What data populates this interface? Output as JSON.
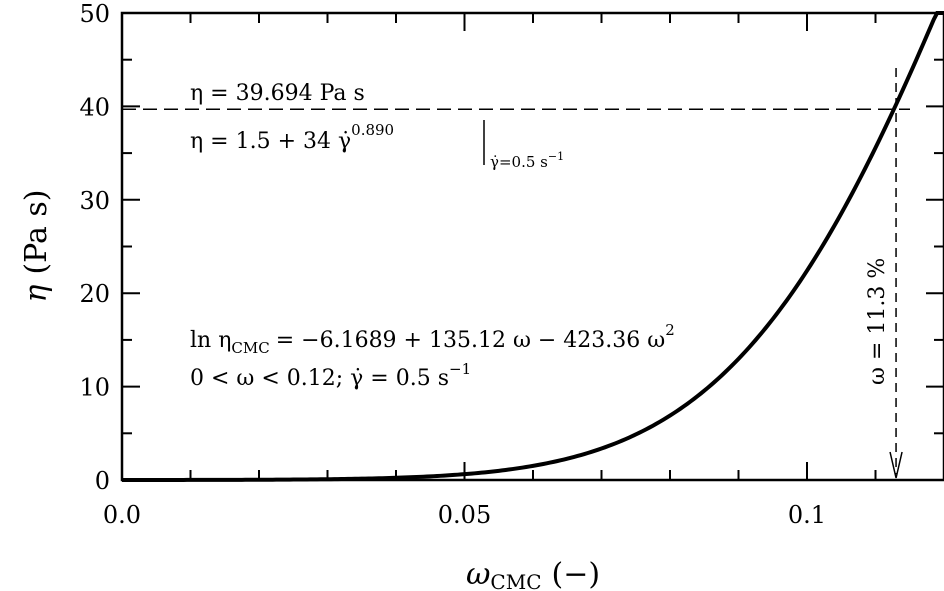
{
  "chart_data": {
    "type": "line",
    "xlabel": "ω",
    "xlabel_sub": "CMC",
    "xlabel_unit": "(−)",
    "ylabel": "η",
    "ylabel_unit": "(Pa s)",
    "xlim": [
      0,
      0.12
    ],
    "ylim": [
      0,
      50
    ],
    "x_ticks": [
      {
        "value": 0.0,
        "label": "0.0"
      },
      {
        "value": 0.05,
        "label": "0.05"
      },
      {
        "value": 0.1,
        "label": "0.1"
      }
    ],
    "y_ticks": [
      {
        "value": 0,
        "label": "0"
      },
      {
        "value": 10,
        "label": "10"
      },
      {
        "value": 20,
        "label": "20"
      },
      {
        "value": 30,
        "label": "30"
      },
      {
        "value": 40,
        "label": "40"
      },
      {
        "value": 50,
        "label": "50"
      }
    ],
    "x_minor_step": 0.01,
    "y_minor_step": 5,
    "grid": false,
    "series": [
      {
        "model": {
          "a": -6.1689,
          "b": 135.12,
          "c": -423.36
        },
        "x": [
          0.0,
          0.01,
          0.02,
          0.03,
          0.04,
          0.05,
          0.06,
          0.07,
          0.08,
          0.09,
          0.1,
          0.11,
          0.113,
          0.12
        ],
        "y": [
          0.002,
          0.008,
          0.025,
          0.075,
          0.2,
          0.55,
          1.35,
          3.1,
          6.6,
          12.9,
          23.0,
          36.6,
          39.7,
          50.0
        ]
      }
    ],
    "reference": {
      "x": 0.113,
      "y": 39.694,
      "horizontal_label": "η = 39.694 Pa s",
      "vertical_label": "ω = 11.3 %"
    },
    "annotations": {
      "fit_lhs": "η = ",
      "fit_expr": "1.5 + 34 γ̇",
      "fit_exp": "0.890",
      "fit_eval": "γ̇=0.5 s",
      "fit_eval_exp": "−1",
      "model_lhs": "ln η",
      "model_lhs_sub": "CMC",
      "model_rhs": "= −6.1689 + 135.12 ω − 423.36 ω",
      "model_rhs_exp": "2",
      "range_text": "0 < ω < 0.12;  γ̇ = 0.5 s",
      "range_exp": "−1"
    }
  }
}
